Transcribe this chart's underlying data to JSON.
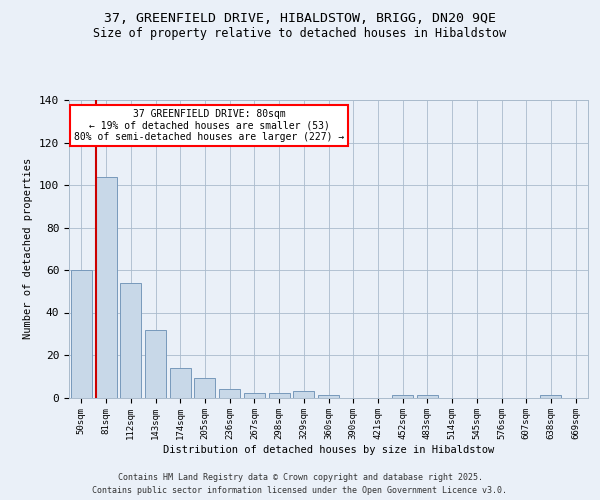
{
  "title1": "37, GREENFIELD DRIVE, HIBALDSTOW, BRIGG, DN20 9QE",
  "title2": "Size of property relative to detached houses in Hibaldstow",
  "xlabel": "Distribution of detached houses by size in Hibaldstow",
  "ylabel": "Number of detached properties",
  "categories": [
    "50sqm",
    "81sqm",
    "112sqm",
    "143sqm",
    "174sqm",
    "205sqm",
    "236sqm",
    "267sqm",
    "298sqm",
    "329sqm",
    "360sqm",
    "390sqm",
    "421sqm",
    "452sqm",
    "483sqm",
    "514sqm",
    "545sqm",
    "576sqm",
    "607sqm",
    "638sqm",
    "669sqm"
  ],
  "values": [
    60,
    104,
    54,
    32,
    14,
    9,
    4,
    2,
    2,
    3,
    1,
    0,
    0,
    1,
    1,
    0,
    0,
    0,
    0,
    1,
    0
  ],
  "bar_color": "#c8d8e8",
  "bar_edge_color": "#7799bb",
  "red_line_x": 0.58,
  "annotation_text": "37 GREENFIELD DRIVE: 80sqm\n← 19% of detached houses are smaller (53)\n80% of semi-detached houses are larger (227) →",
  "annotation_box_color": "white",
  "annotation_edge_color": "red",
  "red_line_color": "#cc0000",
  "ylim": [
    0,
    140
  ],
  "yticks": [
    0,
    20,
    40,
    60,
    80,
    100,
    120,
    140
  ],
  "footer1": "Contains HM Land Registry data © Crown copyright and database right 2025.",
  "footer2": "Contains public sector information licensed under the Open Government Licence v3.0.",
  "bg_color": "#eaf0f8",
  "plot_bg_color": "#eaf0f8"
}
